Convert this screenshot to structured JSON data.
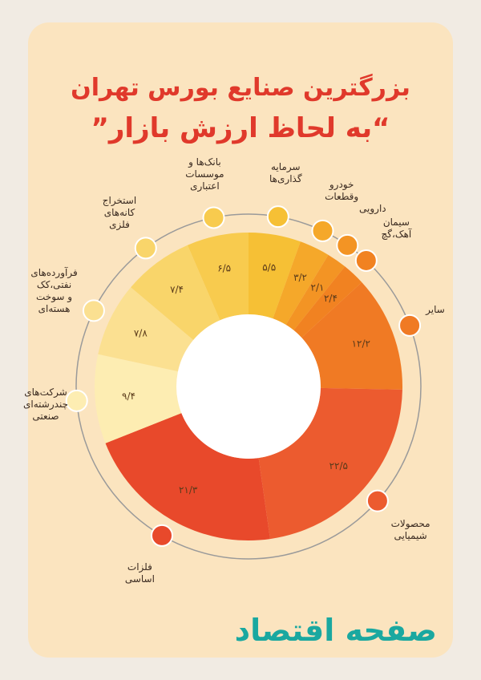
{
  "chart_data": {
    "type": "donut",
    "title": "بزرگترین صنایع بورس تهران",
    "subtitle": "“به لحاظ ارزش بازار”",
    "categories": [
      "سرمایه\nگذاری‌ها",
      "خودرو\nوقطعات",
      "دارویی",
      "سیمان\nآهک،گچ",
      "سایر",
      "محصولات\nشیمیایی",
      "فلزات\nاساسی",
      "شرکت‌های\nچندرشته‌ای\nصنعتی",
      "فرآورده‌های\nنفتی،کک\nو سوخت\nهسته‌ای",
      "استخراج\nکانه‌های\nفلزی",
      "بانک‌ها و\nموسسات\nاعتباری"
    ],
    "values": [
      5.5,
      3.2,
      2.1,
      2.4,
      12.2,
      22.5,
      21.3,
      9.4,
      7.8,
      7.4,
      6.5
    ],
    "value_labels": [
      "۵/۵",
      "۳/۲",
      "۲/۱",
      "۲/۴",
      "۱۲/۲",
      "۲۲/۵",
      "۲۱/۳",
      "۹/۴",
      "۷/۸",
      "۷/۴",
      "۶/۵"
    ],
    "colors": [
      "#f6c035",
      "#f5a82a",
      "#f39424",
      "#f18221",
      "#f07a24",
      "#ec5b2f",
      "#e8492b",
      "#fdedb2",
      "#fbe091",
      "#f9d56a",
      "#f8cb4e"
    ],
    "source": "صفحه اقتصاد"
  }
}
